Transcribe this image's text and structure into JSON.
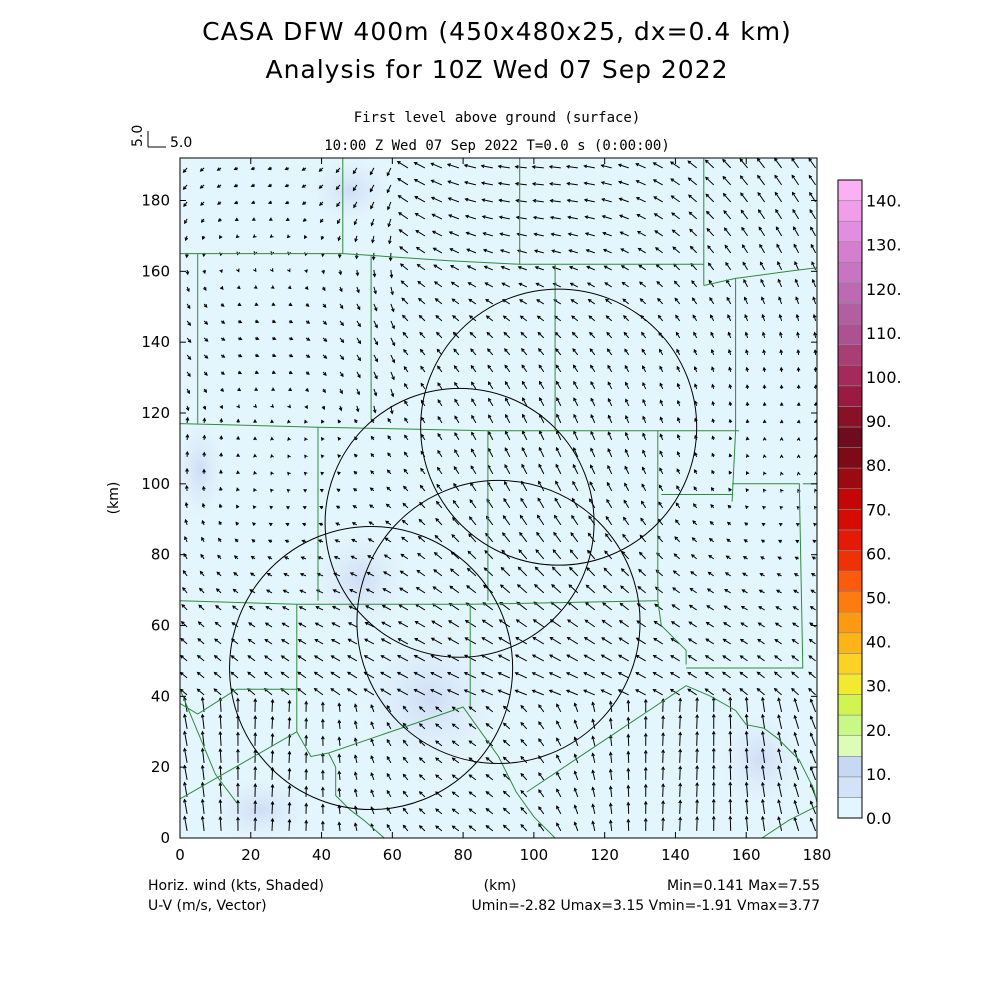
{
  "title_line1": "CASA DFW 400m (450x480x25, dx=0.4 km)",
  "title_line2": "Analysis for 10Z Wed 07 Sep 2022",
  "subtitle_line1": "First level above ground (surface)",
  "subtitle_line2": "10:00 Z Wed 07 Sep 2022   T=0.0 s (0:00:00)",
  "ref_vector_label": "5.0",
  "ref_vector_axis_label": "5.0",
  "xlabel": "(km)",
  "ylabel": "(km)",
  "footer": {
    "left_line1": "Horiz. wind (kts, Shaded)",
    "left_line2": "U-V (m/s, Vector)",
    "stats_line1": "Min=0.141 Max=7.55",
    "stats_line2": "Umin=-2.82 Umax=3.15 Vmin=-1.91 Vmax=3.77"
  },
  "colorbar": {
    "labels": [
      "0.0",
      "10.",
      "20.",
      "30.",
      "40.",
      "50.",
      "60.",
      "70.",
      "80.",
      "90.",
      "100.",
      "110.",
      "120.",
      "130.",
      "140."
    ],
    "colors": [
      "#e4f6fd",
      "#d4e2f7",
      "#c6d8f4",
      "#dcfcb8",
      "#c8f886",
      "#d2f450",
      "#f2ea30",
      "#fcd226",
      "#fcb418",
      "#fc9a14",
      "#fc7c10",
      "#fc5a0c",
      "#ee3206",
      "#e41a08",
      "#d40c04",
      "#c40606",
      "#9a0a10",
      "#7e0a18",
      "#6e0c1e",
      "#8a1028",
      "#9a1a44",
      "#a42a5c",
      "#a83e74",
      "#ac5290",
      "#b45ea2",
      "#bc6ab4",
      "#c874c2",
      "#d47ed0",
      "#e28ee0",
      "#f09eea",
      "#fcb0f4"
    ]
  },
  "chart_data": {
    "type": "map",
    "xlim": [
      0,
      180
    ],
    "ylim": [
      0,
      192
    ],
    "xticks": [
      0,
      20,
      40,
      60,
      80,
      100,
      120,
      140,
      160,
      180
    ],
    "yticks": [
      0,
      20,
      40,
      60,
      80,
      100,
      120,
      140,
      160,
      180
    ],
    "shading_min": 0.141,
    "shading_max": 7.55,
    "u_range": [
      -2.82,
      3.15
    ],
    "v_range": [
      -1.91,
      3.77
    ],
    "radar_range_rings": [
      {
        "cx": 107,
        "cy": 116,
        "r": 39
      },
      {
        "cx": 79,
        "cy": 89,
        "r": 38
      },
      {
        "cx": 90,
        "cy": 61,
        "r": 40
      },
      {
        "cx": 54,
        "cy": 48,
        "r": 40
      }
    ],
    "county_boundaries": [
      [
        [
          0,
          165
        ],
        [
          46,
          165
        ]
      ],
      [
        [
          46,
          165
        ],
        [
          46,
          192
        ]
      ],
      [
        [
          46,
          165
        ],
        [
          54,
          164.5
        ],
        [
          76,
          163
        ],
        [
          96,
          162
        ],
        [
          148,
          162
        ]
      ],
      [
        [
          96,
          162
        ],
        [
          96,
          192
        ]
      ],
      [
        [
          148,
          156
        ],
        [
          148,
          192
        ]
      ],
      [
        [
          148,
          156
        ],
        [
          157,
          158
        ],
        [
          172,
          160
        ],
        [
          180,
          161
        ]
      ],
      [
        [
          5,
          165
        ],
        [
          5,
          117
        ]
      ],
      [
        [
          54,
          164.5
        ],
        [
          54,
          118
        ]
      ],
      [
        [
          106,
          162
        ],
        [
          106,
          115
        ]
      ],
      [
        [
          0,
          117
        ],
        [
          39,
          116
        ],
        [
          87,
          115
        ],
        [
          158,
          115
        ]
      ],
      [
        [
          39,
          116
        ],
        [
          39,
          67
        ]
      ],
      [
        [
          87,
          115
        ],
        [
          87,
          67
        ]
      ],
      [
        [
          135,
          115
        ],
        [
          135,
          67
        ]
      ],
      [
        [
          157,
          158
        ],
        [
          157,
          115
        ],
        [
          156,
          95
        ]
      ],
      [
        [
          0,
          67
        ],
        [
          33,
          66
        ],
        [
          82,
          66
        ],
        [
          135,
          67
        ]
      ],
      [
        [
          33,
          66
        ],
        [
          33,
          30
        ]
      ],
      [
        [
          82,
          66
        ],
        [
          82,
          37
        ]
      ],
      [
        [
          135,
          67
        ],
        [
          136,
          60
        ],
        [
          143,
          53
        ],
        [
          143,
          49
        ]
      ],
      [
        [
          136,
          97
        ],
        [
          156,
          97
        ]
      ],
      [
        [
          156,
          100
        ],
        [
          175,
          100
        ],
        [
          176,
          48
        ],
        [
          143,
          48
        ]
      ],
      [
        [
          176,
          100
        ],
        [
          180,
          100
        ]
      ],
      [
        [
          0,
          38
        ],
        [
          5,
          35
        ],
        [
          16,
          42
        ],
        [
          33,
          42
        ]
      ],
      [
        [
          0,
          11
        ],
        [
          33,
          30
        ],
        [
          37,
          23
        ],
        [
          42,
          24
        ],
        [
          80,
          37
        ],
        [
          90,
          23
        ],
        [
          95,
          13
        ],
        [
          100,
          6
        ],
        [
          109,
          -3
        ]
      ],
      [
        [
          0,
          42
        ],
        [
          10,
          18
        ],
        [
          16,
          10
        ]
      ],
      [
        [
          42,
          24
        ],
        [
          44,
          20
        ],
        [
          44,
          12
        ],
        [
          48,
          8
        ],
        [
          52,
          5
        ],
        [
          60,
          -2
        ]
      ],
      [
        [
          143,
          43
        ],
        [
          150,
          40
        ],
        [
          157,
          36
        ],
        [
          160,
          32
        ],
        [
          165,
          31
        ],
        [
          169,
          28
        ],
        [
          175,
          22
        ],
        [
          177,
          18
        ],
        [
          179,
          14
        ],
        [
          180,
          10
        ]
      ],
      [
        [
          98,
          13
        ],
        [
          143,
          43
        ]
      ],
      [
        [
          163,
          -1
        ],
        [
          172,
          5
        ],
        [
          180,
          9
        ]
      ]
    ]
  }
}
